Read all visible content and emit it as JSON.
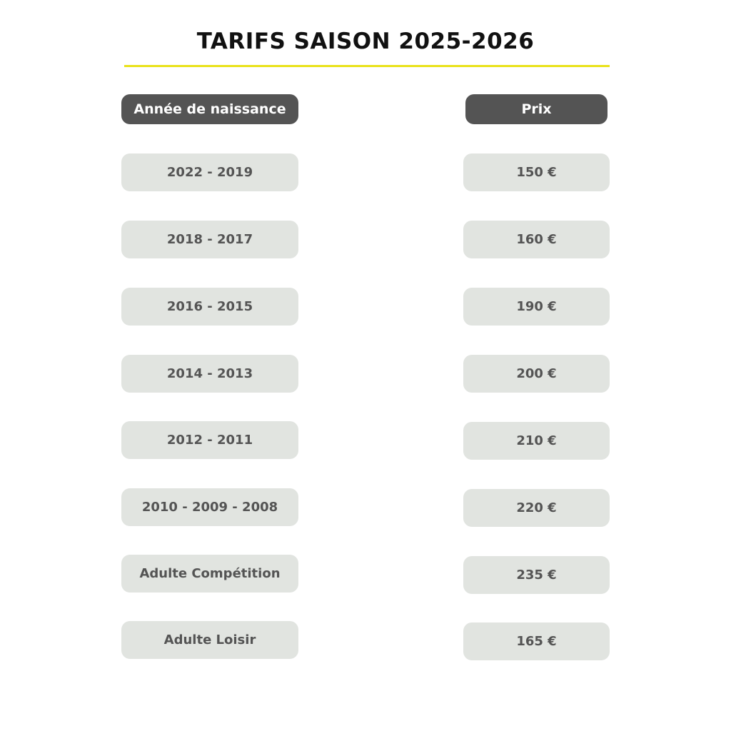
{
  "title": "TARIFS SAISON 2025-2026",
  "headers": {
    "year": "Année de naissance",
    "price": "Prix"
  },
  "rows": [
    {
      "year": "2022 - 2019",
      "price": "150 €"
    },
    {
      "year": "2018 - 2017",
      "price": "160 €"
    },
    {
      "year": "2016 - 2015",
      "price": "190 €"
    },
    {
      "year": "2014 - 2013",
      "price": "200 €"
    },
    {
      "year": "2012 - 2011",
      "price": "210 €"
    },
    {
      "year": "2010 - 2009 - 2008",
      "price": "220 €"
    },
    {
      "year": "Adulte Compétition",
      "price": "235 €"
    },
    {
      "year": "Adulte Loisir",
      "price": "165 €"
    }
  ],
  "colors": {
    "accent": "#e9e21a",
    "header_bg": "#545454",
    "cell_bg": "#e1e4e0"
  }
}
